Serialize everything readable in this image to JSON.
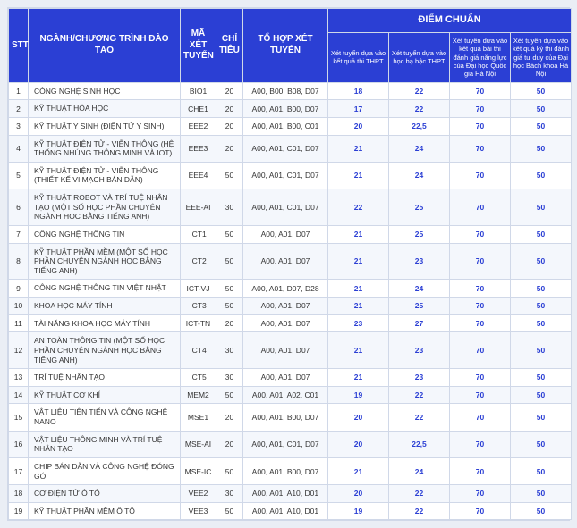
{
  "table": {
    "header": {
      "stt": "STT",
      "program": "NGÀNH/CHƯƠNG TRÌNH ĐÀO TẠO",
      "code": "MÃ XÉT TUYỂN",
      "quota": "CHỈ TIÊU",
      "combo": "TỔ HỢP XÉT TUYỂN",
      "score_group": "ĐIỂM CHUẨN",
      "sub": {
        "s1": "Xét tuyển dựa vào kết quả thi THPT",
        "s2": "Xét tuyển dựa vào học bạ bậc THPT",
        "s3": "Xét tuyển dựa vào kết quả bài thi đánh giá năng lực của Đại học Quốc gia Hà Nội",
        "s4": "Xét tuyển dựa vào kết quả kỳ thi đánh giá tư duy của Đại học Bách khoa Hà Nội"
      }
    },
    "rows": [
      {
        "stt": "1",
        "name": "CÔNG NGHỆ SINH HỌC",
        "code": "BIO1",
        "quota": "20",
        "combo": "A00, B00, B08, D07",
        "s1": "18",
        "s2": "22",
        "s3": "70",
        "s4": "50"
      },
      {
        "stt": "2",
        "name": "KỸ THUẬT HÓA HỌC",
        "code": "CHE1",
        "quota": "20",
        "combo": "A00, A01, B00, D07",
        "s1": "17",
        "s2": "22",
        "s3": "70",
        "s4": "50"
      },
      {
        "stt": "3",
        "name": "KỸ THUẬT Y SINH (ĐIỆN TỬ Y SINH)",
        "code": "EEE2",
        "quota": "20",
        "combo": "A00, A01, B00, C01",
        "s1": "20",
        "s2": "22,5",
        "s3": "70",
        "s4": "50"
      },
      {
        "stt": "4",
        "name": "KỸ THUẬT ĐIỆN TỬ - VIỄN THÔNG (HỆ THỐNG NHÚNG THÔNG MINH VÀ IOT)",
        "code": "EEE3",
        "quota": "20",
        "combo": "A00, A01, C01, D07",
        "s1": "21",
        "s2": "24",
        "s3": "70",
        "s4": "50"
      },
      {
        "stt": "5",
        "name": "KỸ THUẬT ĐIỆN TỬ - VIỄN THÔNG (THIẾT KẾ VI MẠCH BÁN DẪN)",
        "code": "EEE4",
        "quota": "50",
        "combo": "A00, A01, C01, D07",
        "s1": "21",
        "s2": "24",
        "s3": "70",
        "s4": "50"
      },
      {
        "stt": "6",
        "name": "KỸ THUẬT ROBOT VÀ TRÍ TUỆ NHÂN TẠO (MỘT SỐ HỌC PHẦN CHUYÊN NGÀNH HỌC BẰNG TIẾNG ANH)",
        "code": "EEE-AI",
        "quota": "30",
        "combo": "A00, A01, C01, D07",
        "s1": "22",
        "s2": "25",
        "s3": "70",
        "s4": "50"
      },
      {
        "stt": "7",
        "name": "CÔNG NGHỆ THÔNG TIN",
        "code": "ICT1",
        "quota": "50",
        "combo": "A00, A01, D07",
        "s1": "21",
        "s2": "25",
        "s3": "70",
        "s4": "50"
      },
      {
        "stt": "8",
        "name": "KỸ THUẬT PHẦN MỀM (MỘT SỐ HỌC PHẦN CHUYÊN NGÀNH HỌC BẰNG TIẾNG ANH)",
        "code": "ICT2",
        "quota": "50",
        "combo": "A00, A01, D07",
        "s1": "21",
        "s2": "23",
        "s3": "70",
        "s4": "50"
      },
      {
        "stt": "9",
        "name": "CÔNG NGHỆ THÔNG TIN VIỆT NHẬT",
        "code": "ICT-VJ",
        "quota": "50",
        "combo": "A00, A01, D07, D28",
        "s1": "21",
        "s2": "24",
        "s3": "70",
        "s4": "50"
      },
      {
        "stt": "10",
        "name": "KHOA HỌC MÁY TÍNH",
        "code": "ICT3",
        "quota": "50",
        "combo": "A00, A01, D07",
        "s1": "21",
        "s2": "25",
        "s3": "70",
        "s4": "50"
      },
      {
        "stt": "11",
        "name": "TÀI NĂNG KHOA HỌC MÁY TÍNH",
        "code": "ICT-TN",
        "quota": "20",
        "combo": "A00, A01, D07",
        "s1": "23",
        "s2": "27",
        "s3": "70",
        "s4": "50"
      },
      {
        "stt": "12",
        "name": "AN TOÀN THÔNG TIN (MỘT SỐ HỌC PHẦN CHUYÊN NGÀNH HỌC BẰNG TIẾNG ANH)",
        "code": "ICT4",
        "quota": "30",
        "combo": "A00, A01, D07",
        "s1": "21",
        "s2": "23",
        "s3": "70",
        "s4": "50"
      },
      {
        "stt": "13",
        "name": "TRÍ TUỆ NHÂN TẠO",
        "code": "ICT5",
        "quota": "30",
        "combo": "A00, A01, D07",
        "s1": "21",
        "s2": "23",
        "s3": "70",
        "s4": "50"
      },
      {
        "stt": "14",
        "name": "KỸ THUẬT CƠ KHÍ",
        "code": "MEM2",
        "quota": "50",
        "combo": "A00, A01, A02, C01",
        "s1": "19",
        "s2": "22",
        "s3": "70",
        "s4": "50"
      },
      {
        "stt": "15",
        "name": "VẬT LIỆU TIÊN TIẾN VÀ CÔNG NGHỆ NANO",
        "code": "MSE1",
        "quota": "20",
        "combo": "A00, A01, B00, D07",
        "s1": "20",
        "s2": "22",
        "s3": "70",
        "s4": "50"
      },
      {
        "stt": "16",
        "name": "VẬT LIỆU THÔNG MINH VÀ TRÍ TUỆ NHÂN TẠO",
        "code": "MSE-AI",
        "quota": "20",
        "combo": "A00, A01, C01, D07",
        "s1": "20",
        "s2": "22,5",
        "s3": "70",
        "s4": "50"
      },
      {
        "stt": "17",
        "name": "CHIP BÁN DẪN VÀ CÔNG NGHỆ ĐÓNG GÓI",
        "code": "MSE-IC",
        "quota": "50",
        "combo": "A00, A01, B00, D07",
        "s1": "21",
        "s2": "24",
        "s3": "70",
        "s4": "50"
      },
      {
        "stt": "18",
        "name": "CƠ ĐIỆN TỬ Ô TÔ",
        "code": "VEE2",
        "quota": "30",
        "combo": "A00, A01, A10, D01",
        "s1": "20",
        "s2": "22",
        "s3": "70",
        "s4": "50"
      },
      {
        "stt": "19",
        "name": "KỸ THUẬT PHẦN MỀM Ô TÔ",
        "code": "VEE3",
        "quota": "50",
        "combo": "A00, A01, A10, D01",
        "s1": "19",
        "s2": "22",
        "s3": "70",
        "s4": "50"
      }
    ]
  }
}
